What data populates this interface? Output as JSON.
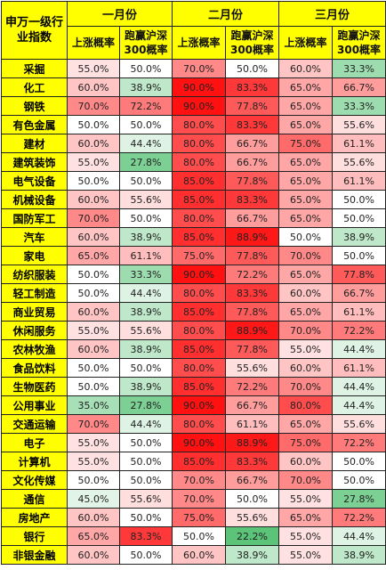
{
  "headers": {
    "sector": "申万一级行业指数",
    "months": [
      "一月份",
      "二月份",
      "三月份"
    ],
    "up_prob": "上涨概率",
    "beat_prob": "跑赢沪深300概率"
  },
  "rows": [
    {
      "name": "采掘",
      "jan_up": "55.0%",
      "jan_beat": "50.0%",
      "feb_up": "70.0%",
      "feb_beat": "50.0%",
      "mar_up": "60.0%",
      "mar_beat": "33.3%"
    },
    {
      "name": "化工",
      "jan_up": "60.0%",
      "jan_beat": "38.9%",
      "feb_up": "90.0%",
      "feb_beat": "83.3%",
      "mar_up": "65.0%",
      "mar_beat": "66.7%"
    },
    {
      "name": "钢铁",
      "jan_up": "70.0%",
      "jan_beat": "72.2%",
      "feb_up": "90.0%",
      "feb_beat": "77.8%",
      "mar_up": "65.0%",
      "mar_beat": "33.3%"
    },
    {
      "name": "有色金属",
      "jan_up": "50.0%",
      "jan_beat": "50.0%",
      "feb_up": "80.0%",
      "feb_beat": "83.3%",
      "mar_up": "65.0%",
      "mar_beat": "55.6%"
    },
    {
      "name": "建材",
      "jan_up": "60.0%",
      "jan_beat": "44.4%",
      "feb_up": "80.0%",
      "feb_beat": "66.7%",
      "mar_up": "75.0%",
      "mar_beat": "61.1%"
    },
    {
      "name": "建筑装饰",
      "jan_up": "55.0%",
      "jan_beat": "27.8%",
      "feb_up": "80.0%",
      "feb_beat": "66.7%",
      "mar_up": "65.0%",
      "mar_beat": "55.6%"
    },
    {
      "name": "电气设备",
      "jan_up": "50.0%",
      "jan_beat": "50.0%",
      "feb_up": "85.0%",
      "feb_beat": "77.8%",
      "mar_up": "65.0%",
      "mar_beat": "61.1%"
    },
    {
      "name": "机械设备",
      "jan_up": "60.0%",
      "jan_beat": "55.6%",
      "feb_up": "85.0%",
      "feb_beat": "83.3%",
      "mar_up": "65.0%",
      "mar_beat": "50.0%"
    },
    {
      "name": "国防军工",
      "jan_up": "70.0%",
      "jan_beat": "50.0%",
      "feb_up": "80.0%",
      "feb_beat": "66.7%",
      "mar_up": "65.0%",
      "mar_beat": "50.0%"
    },
    {
      "name": "汽车",
      "jan_up": "60.0%",
      "jan_beat": "38.9%",
      "feb_up": "85.0%",
      "feb_beat": "88.9%",
      "mar_up": "50.0%",
      "mar_beat": "38.9%"
    },
    {
      "name": "家电",
      "jan_up": "65.0%",
      "jan_beat": "61.1%",
      "feb_up": "75.0%",
      "feb_beat": "77.8%",
      "mar_up": "70.0%",
      "mar_beat": "50.0%"
    },
    {
      "name": "纺织服装",
      "jan_up": "50.0%",
      "jan_beat": "33.3%",
      "feb_up": "90.0%",
      "feb_beat": "72.2%",
      "mar_up": "65.0%",
      "mar_beat": "77.8%"
    },
    {
      "name": "轻工制造",
      "jan_up": "50.0%",
      "jan_beat": "44.4%",
      "feb_up": "80.0%",
      "feb_beat": "83.3%",
      "mar_up": "60.0%",
      "mar_beat": "66.7%"
    },
    {
      "name": "商业贸易",
      "jan_up": "60.0%",
      "jan_beat": "38.9%",
      "feb_up": "85.0%",
      "feb_beat": "77.8%",
      "mar_up": "65.0%",
      "mar_beat": "61.1%"
    },
    {
      "name": "休闲服务",
      "jan_up": "55.0%",
      "jan_beat": "55.6%",
      "feb_up": "80.0%",
      "feb_beat": "88.9%",
      "mar_up": "70.0%",
      "mar_beat": "72.2%"
    },
    {
      "name": "农林牧渔",
      "jan_up": "60.0%",
      "jan_beat": "38.9%",
      "feb_up": "85.0%",
      "feb_beat": "77.8%",
      "mar_up": "55.0%",
      "mar_beat": "44.4%"
    },
    {
      "name": "食品饮料",
      "jan_up": "50.0%",
      "jan_beat": "50.0%",
      "feb_up": "80.0%",
      "feb_beat": "55.6%",
      "mar_up": "60.0%",
      "mar_beat": "61.1%"
    },
    {
      "name": "生物医药",
      "jan_up": "50.0%",
      "jan_beat": "38.9%",
      "feb_up": "85.0%",
      "feb_beat": "72.2%",
      "mar_up": "70.0%",
      "mar_beat": "44.4%"
    },
    {
      "name": "公用事业",
      "jan_up": "35.0%",
      "jan_beat": "27.8%",
      "feb_up": "90.0%",
      "feb_beat": "66.7%",
      "mar_up": "80.0%",
      "mar_beat": "44.4%"
    },
    {
      "name": "交通运输",
      "jan_up": "70.0%",
      "jan_beat": "44.4%",
      "feb_up": "80.0%",
      "feb_beat": "61.1%",
      "mar_up": "65.0%",
      "mar_beat": "55.6%"
    },
    {
      "name": "电子",
      "jan_up": "55.0%",
      "jan_beat": "50.0%",
      "feb_up": "90.0%",
      "feb_beat": "88.9%",
      "mar_up": "75.0%",
      "mar_beat": "72.2%"
    },
    {
      "name": "计算机",
      "jan_up": "55.0%",
      "jan_beat": "50.0%",
      "feb_up": "85.0%",
      "feb_beat": "83.3%",
      "mar_up": "60.0%",
      "mar_beat": "50.0%"
    },
    {
      "name": "文化传媒",
      "jan_up": "50.0%",
      "jan_beat": "50.0%",
      "feb_up": "70.0%",
      "feb_beat": "66.7%",
      "mar_up": "70.0%",
      "mar_beat": "50.0%"
    },
    {
      "name": "通信",
      "jan_up": "45.0%",
      "jan_beat": "55.6%",
      "feb_up": "70.0%",
      "feb_beat": "50.0%",
      "mar_up": "55.0%",
      "mar_beat": "27.8%"
    },
    {
      "name": "房地产",
      "jan_up": "60.0%",
      "jan_beat": "50.0%",
      "feb_up": "75.0%",
      "feb_beat": "55.6%",
      "mar_up": "65.0%",
      "mar_beat": "72.2%"
    },
    {
      "name": "银行",
      "jan_up": "65.0%",
      "jan_beat": "83.3%",
      "feb_up": "50.0%",
      "feb_beat": "22.2%",
      "mar_up": "55.0%",
      "mar_beat": "44.4%"
    },
    {
      "name": "非银金融",
      "jan_up": "60.0%",
      "jan_beat": "50.0%",
      "feb_up": "60.0%",
      "feb_beat": "38.9%",
      "mar_up": "55.0%",
      "mar_beat": "38.9%"
    }
  ]
}
